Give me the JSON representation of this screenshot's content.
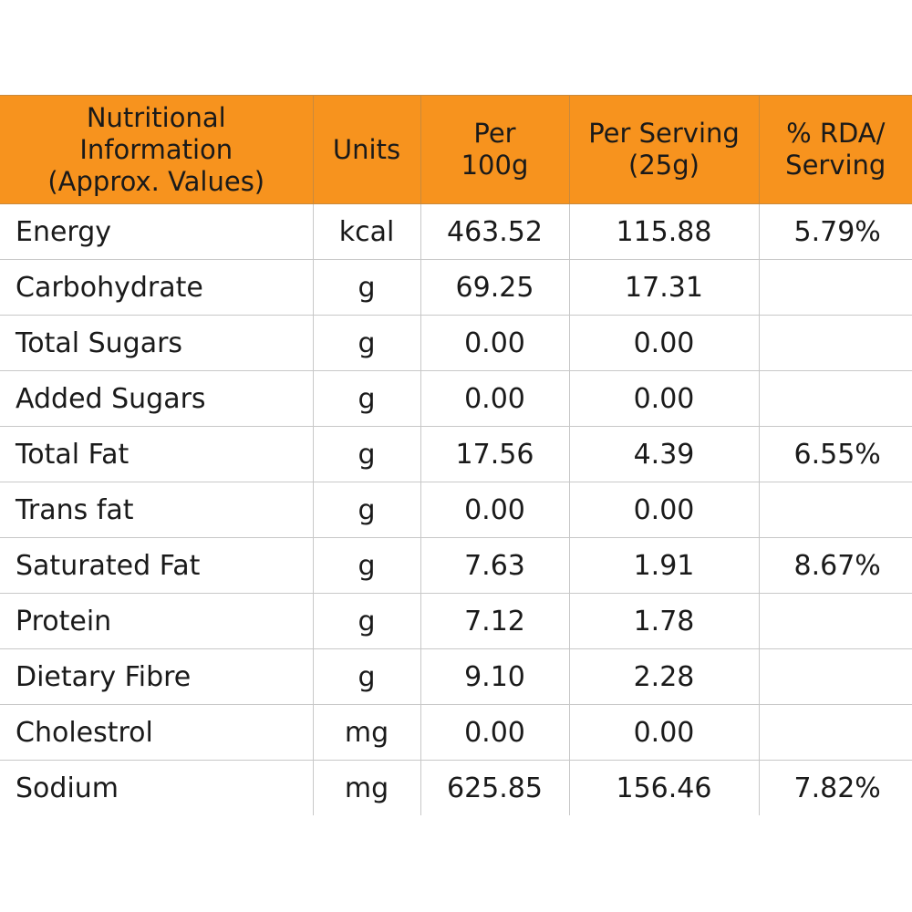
{
  "table": {
    "headers": [
      {
        "lines": [
          "Nutritional",
          "Information",
          "(Approx. Values)"
        ]
      },
      {
        "lines": [
          "Units"
        ]
      },
      {
        "lines": [
          "Per",
          "100g"
        ]
      },
      {
        "lines": [
          "Per Serving",
          "(25g)"
        ]
      },
      {
        "lines": [
          "% RDA/",
          "Serving"
        ]
      }
    ],
    "rows": [
      {
        "nutrient": "Energy",
        "unit": "kcal",
        "per_100g": "463.52",
        "per_serving": "115.88",
        "rda": "5.79%"
      },
      {
        "nutrient": "Carbohydrate",
        "unit": "g",
        "per_100g": "69.25",
        "per_serving": "17.31",
        "rda": ""
      },
      {
        "nutrient": "Total Sugars",
        "unit": "g",
        "per_100g": "0.00",
        "per_serving": "0.00",
        "rda": ""
      },
      {
        "nutrient": "Added Sugars",
        "unit": "g",
        "per_100g": "0.00",
        "per_serving": "0.00",
        "rda": ""
      },
      {
        "nutrient": "Total Fat",
        "unit": "g",
        "per_100g": "17.56",
        "per_serving": "4.39",
        "rda": "6.55%"
      },
      {
        "nutrient": "Trans fat",
        "unit": "g",
        "per_100g": "0.00",
        "per_serving": "0.00",
        "rda": ""
      },
      {
        "nutrient": "Saturated Fat",
        "unit": "g",
        "per_100g": "7.63",
        "per_serving": "1.91",
        "rda": "8.67%"
      },
      {
        "nutrient": "Protein",
        "unit": "g",
        "per_100g": "7.12",
        "per_serving": "1.78",
        "rda": ""
      },
      {
        "nutrient": "Dietary Fibre",
        "unit": "g",
        "per_100g": "9.10",
        "per_serving": "2.28",
        "rda": ""
      },
      {
        "nutrient": "Cholestrol",
        "unit": "mg",
        "per_100g": "0.00",
        "per_serving": "0.00",
        "rda": ""
      },
      {
        "nutrient": "Sodium",
        "unit": "mg",
        "per_100g": "625.85",
        "per_serving": "156.46",
        "rda": "7.82%"
      }
    ]
  },
  "colors": {
    "header_background": "#f7931e",
    "grid_line": "#c8c8c8",
    "text": "#1a1a1a"
  }
}
